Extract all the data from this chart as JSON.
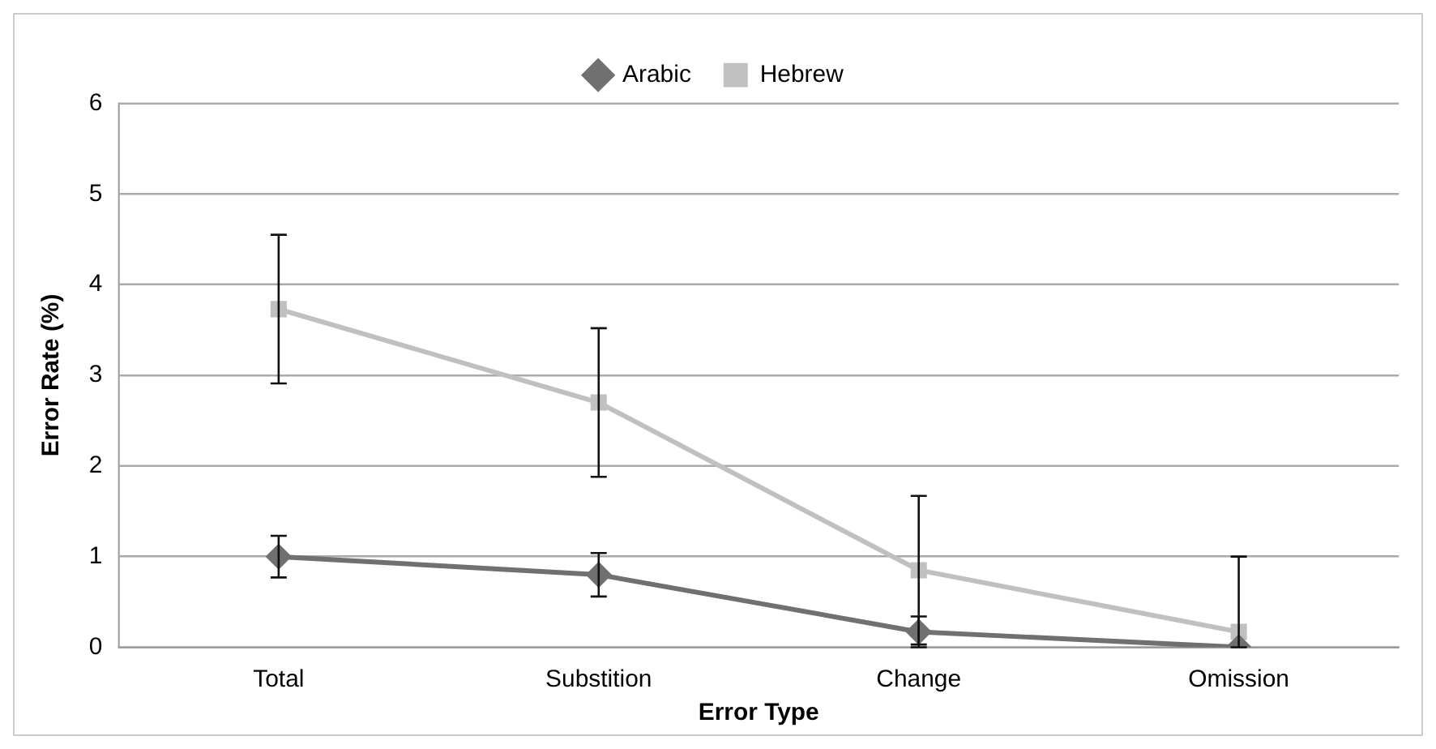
{
  "chart_data": {
    "type": "line",
    "xlabel": "Error Type",
    "ylabel": "Error Rate (%)",
    "categories": [
      "Total",
      "Substition",
      "Change",
      "Omission"
    ],
    "ylim": [
      0,
      6
    ],
    "yticks": [
      0,
      1,
      2,
      3,
      4,
      5,
      6
    ],
    "grid": "y",
    "legend": "top",
    "series": [
      {
        "name": "Arabic",
        "color": "#707070",
        "marker": "diamond",
        "values": [
          1.0,
          0.8,
          0.17,
          0.0
        ],
        "errors": [
          0.23,
          0.24,
          0.17,
          null
        ]
      },
      {
        "name": "Hebrew",
        "color": "#c0c0c0",
        "marker": "square",
        "values": [
          3.73,
          2.7,
          0.85,
          0.17
        ],
        "errors": [
          0.82,
          0.82,
          0.82,
          [
            0,
            1.0
          ]
        ]
      }
    ]
  }
}
